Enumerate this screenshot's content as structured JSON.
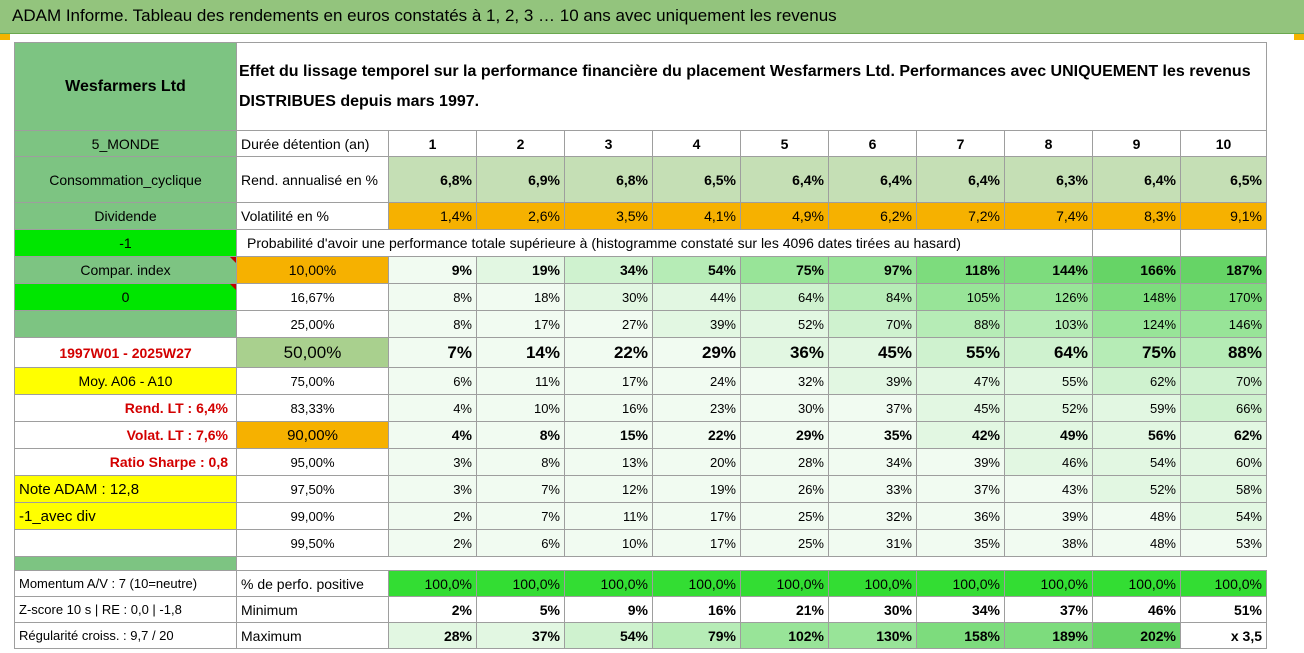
{
  "title": "ADAM Informe. Tableau des rendements en euros constatés à 1, 2, 3 … 10 ans avec uniquement les revenus",
  "company": "Wesfarmers Ltd",
  "description": "Effet du lissage temporel sur la performance financière du placement Wesfarmers Ltd. Performances avec UNIQUEMENT les revenus DISTRIBUES depuis mars 1997.",
  "left": {
    "region": "5_MONDE",
    "sector": "Consommation_cyclique",
    "style": "Dividende",
    "flag1": "-1",
    "compar": "Compar. index",
    "flag2": "0",
    "period": "1997W01 - 2025W27",
    "moy": "Moy. A06 - A10",
    "rend_lt": "Rend. LT :   6,4%",
    "volat_lt": "Volat. LT :   7,6%",
    "sharpe": "Ratio Sharpe :   0,8",
    "note": "Note ADAM : 12,8",
    "div": "-1_avec div"
  },
  "header": {
    "duree": "Durée détention (an)",
    "years": [
      "1",
      "2",
      "3",
      "4",
      "5",
      "6",
      "7",
      "8",
      "9",
      "10"
    ]
  },
  "rend": {
    "label": "Rend. annualisé en %",
    "values": [
      "6,8%",
      "6,9%",
      "6,8%",
      "6,5%",
      "6,4%",
      "6,4%",
      "6,4%",
      "6,3%",
      "6,4%",
      "6,5%"
    ]
  },
  "vol": {
    "label": "Volatilité en %",
    "values": [
      "1,4%",
      "2,6%",
      "3,5%",
      "4,1%",
      "4,9%",
      "6,2%",
      "7,2%",
      "7,4%",
      "8,3%",
      "9,1%"
    ]
  },
  "prob_label": "Probabilité d'avoir une performance totale supérieure à (histogramme constaté sur les 4096 dates tirées au hasard)",
  "percentiles": [
    {
      "p": "10,00%",
      "values": [
        "9%",
        "19%",
        "34%",
        "54%",
        "75%",
        "97%",
        "118%",
        "144%",
        "166%",
        "187%"
      ]
    },
    {
      "p": "16,67%",
      "values": [
        "8%",
        "18%",
        "30%",
        "44%",
        "64%",
        "84%",
        "105%",
        "126%",
        "148%",
        "170%"
      ]
    },
    {
      "p": "25,00%",
      "values": [
        "8%",
        "17%",
        "27%",
        "39%",
        "52%",
        "70%",
        "88%",
        "103%",
        "124%",
        "146%"
      ]
    },
    {
      "p": "50,00%",
      "values": [
        "7%",
        "14%",
        "22%",
        "29%",
        "36%",
        "45%",
        "55%",
        "64%",
        "75%",
        "88%"
      ]
    },
    {
      "p": "75,00%",
      "values": [
        "6%",
        "11%",
        "17%",
        "24%",
        "32%",
        "39%",
        "47%",
        "55%",
        "62%",
        "70%"
      ]
    },
    {
      "p": "83,33%",
      "values": [
        "4%",
        "10%",
        "16%",
        "23%",
        "30%",
        "37%",
        "45%",
        "52%",
        "59%",
        "66%"
      ]
    },
    {
      "p": "90,00%",
      "values": [
        "4%",
        "8%",
        "15%",
        "22%",
        "29%",
        "35%",
        "42%",
        "49%",
        "56%",
        "62%"
      ]
    },
    {
      "p": "95,00%",
      "values": [
        "3%",
        "8%",
        "13%",
        "20%",
        "28%",
        "34%",
        "39%",
        "46%",
        "54%",
        "60%"
      ]
    },
    {
      "p": "97,50%",
      "values": [
        "3%",
        "7%",
        "12%",
        "19%",
        "26%",
        "33%",
        "37%",
        "43%",
        "52%",
        "58%"
      ]
    },
    {
      "p": "99,00%",
      "values": [
        "2%",
        "7%",
        "11%",
        "17%",
        "25%",
        "32%",
        "36%",
        "39%",
        "48%",
        "54%"
      ]
    },
    {
      "p": "99,50%",
      "values": [
        "2%",
        "6%",
        "10%",
        "17%",
        "25%",
        "31%",
        "35%",
        "38%",
        "48%",
        "53%"
      ]
    }
  ],
  "bottom": {
    "momentum": "Momentum A/V : 7 (10=neutre)",
    "zscore": "Z-score 10 s | RE : 0,0 | -1,8",
    "regul": "Régularité croiss. : 9,7 / 20",
    "pos_label": "% de perfo. positive",
    "pos_values": [
      "100,0%",
      "100,0%",
      "100,0%",
      "100,0%",
      "100,0%",
      "100,0%",
      "100,0%",
      "100,0%",
      "100,0%",
      "100,0%"
    ],
    "min_label": "Minimum",
    "min_values": [
      "2%",
      "5%",
      "9%",
      "16%",
      "21%",
      "30%",
      "34%",
      "37%",
      "46%",
      "51%"
    ],
    "max_label": "Maximum",
    "max_values": [
      "28%",
      "37%",
      "54%",
      "79%",
      "102%",
      "130%",
      "158%",
      "189%",
      "202%",
      "x 3,5"
    ]
  }
}
